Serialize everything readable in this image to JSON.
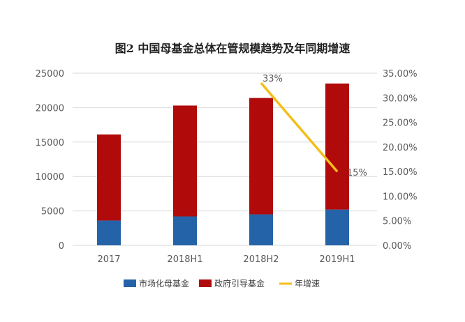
{
  "chart_data": {
    "type": "bar",
    "stacked": true,
    "title": "图2 中国母基金总体在管规模趋势及年同期增速",
    "categories": [
      "2017",
      "2018H1",
      "2018H2",
      "2019H1"
    ],
    "series": [
      {
        "name": "市场化母基金",
        "type": "bar",
        "axis": "left",
        "color": "#2563a8",
        "values": [
          3600,
          4200,
          4500,
          5200
        ]
      },
      {
        "name": "政府引导基金",
        "type": "bar",
        "axis": "left",
        "color": "#b00a0a",
        "values": [
          12500,
          16100,
          16900,
          18300
        ]
      },
      {
        "name": "年增速",
        "type": "line",
        "axis": "right",
        "color": "#f5be1a",
        "points": [
          {
            "category": "2018H2",
            "value": 0.33
          },
          {
            "category": "2019H1",
            "value": 0.15
          }
        ]
      }
    ],
    "data_labels": [
      {
        "category": "2018H2",
        "text": "33%"
      },
      {
        "category": "2019H1",
        "text": "15%"
      }
    ],
    "y_left": {
      "min": 0,
      "max": 25000,
      "ticks": [
        "0",
        "5000",
        "10000",
        "15000",
        "20000",
        "25000"
      ]
    },
    "y_right": {
      "min": 0,
      "max": 0.35,
      "ticks": [
        "0.00%",
        "5.00%",
        "10.00%",
        "15.00%",
        "20.00%",
        "25.00%",
        "30.00%",
        "35.00%"
      ]
    },
    "grid": true,
    "legend": {
      "position": "bottom",
      "items": [
        "市场化母基金",
        "政府引导基金",
        "年增速"
      ]
    }
  }
}
